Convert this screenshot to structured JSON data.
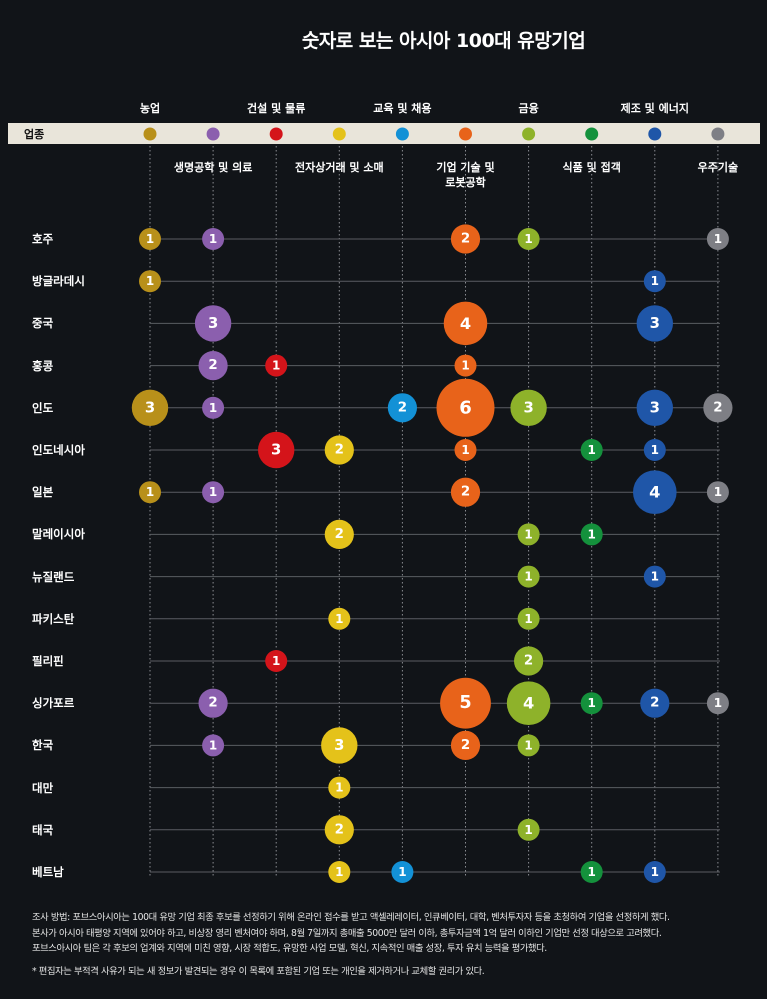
{
  "title": "숫자로 보는 아시아 100대 유망기업",
  "header_label": "업종",
  "chart_data": {
    "type": "bubble-matrix",
    "title": "숫자로 보는 아시아 100대 유망기업",
    "categories": [
      {
        "name": "농업",
        "color": "#b8901a",
        "label_row": "top"
      },
      {
        "name": "생명공학 및 의료",
        "color": "#8b5fae",
        "label_row": "bottom"
      },
      {
        "name": "건설 및 물류",
        "color": "#d4141a",
        "label_row": "top"
      },
      {
        "name": "전자상거래 및 소매",
        "color": "#e4c21a",
        "label_row": "bottom"
      },
      {
        "name": "교육 및 채용",
        "color": "#1391d6",
        "label_row": "top"
      },
      {
        "name": "기업 기술 및\n로봇공학",
        "color": "#e8631a",
        "label_row": "bottom"
      },
      {
        "name": "금융",
        "color": "#8eb22a",
        "label_row": "top"
      },
      {
        "name": "식품 및 접객",
        "color": "#14913c",
        "label_row": "bottom"
      },
      {
        "name": "제조 및 에너지",
        "color": "#1f56a8",
        "label_row": "top"
      },
      {
        "name": "우주기술",
        "color": "#7e7f85",
        "label_row": "bottom"
      }
    ],
    "rows": [
      {
        "country": "호주",
        "values": [
          1,
          1,
          0,
          0,
          0,
          2,
          1,
          0,
          0,
          1
        ]
      },
      {
        "country": "방글라데시",
        "values": [
          1,
          0,
          0,
          0,
          0,
          0,
          0,
          0,
          1,
          0
        ]
      },
      {
        "country": "중국",
        "values": [
          0,
          3,
          0,
          0,
          0,
          4,
          0,
          0,
          3,
          0
        ]
      },
      {
        "country": "홍콩",
        "values": [
          0,
          2,
          1,
          0,
          0,
          1,
          0,
          0,
          0,
          0
        ]
      },
      {
        "country": "인도",
        "values": [
          3,
          1,
          0,
          0,
          2,
          6,
          3,
          0,
          3,
          2
        ]
      },
      {
        "country": "인도네시아",
        "values": [
          0,
          0,
          3,
          2,
          0,
          1,
          0,
          1,
          1,
          0
        ]
      },
      {
        "country": "일본",
        "values": [
          1,
          1,
          0,
          0,
          0,
          2,
          0,
          0,
          4,
          1
        ]
      },
      {
        "country": "말레이시아",
        "values": [
          0,
          0,
          0,
          2,
          0,
          0,
          1,
          1,
          0,
          0
        ]
      },
      {
        "country": "뉴질랜드",
        "values": [
          0,
          0,
          0,
          0,
          0,
          0,
          1,
          0,
          1,
          0
        ]
      },
      {
        "country": "파키스탄",
        "values": [
          0,
          0,
          0,
          1,
          0,
          0,
          1,
          0,
          0,
          0
        ]
      },
      {
        "country": "필리핀",
        "values": [
          0,
          0,
          1,
          0,
          0,
          0,
          2,
          0,
          0,
          0
        ]
      },
      {
        "country": "싱가포르",
        "values": [
          0,
          2,
          0,
          0,
          0,
          5,
          4,
          1,
          2,
          1
        ]
      },
      {
        "country": "한국",
        "values": [
          0,
          1,
          0,
          3,
          0,
          2,
          1,
          0,
          0,
          0
        ]
      },
      {
        "country": "대만",
        "values": [
          0,
          0,
          0,
          1,
          0,
          0,
          0,
          0,
          0,
          0
        ]
      },
      {
        "country": "태국",
        "values": [
          0,
          0,
          0,
          2,
          0,
          0,
          1,
          0,
          0,
          0
        ]
      },
      {
        "country": "베트남",
        "values": [
          0,
          0,
          0,
          1,
          1,
          0,
          0,
          1,
          1,
          0
        ]
      }
    ]
  },
  "footnote": {
    "lines": [
      "조사 방법: 포브스아시아는 100대 유망 기업 최종 후보를 선정하기 위해 온라인 접수를 받고 액셀레레이터, 인큐베이터, 대학, 벤처투자자 등을 초청하여 기업을 선정하게 했다.",
      "본사가 아시아 태평양 지역에 있어야 하고, 비상장 영리 벤처여야 하며, 8월 7일까지 총매출 5000만 달러 이하, 총투자금액 1억 달러 이하인 기업만 선정 대상으로 고려했다.",
      "포브스아시아 팀은 각 후보의 업계와 지역에 미친 영향, 시장 적합도, 유망한 사업 모델, 혁신, 지속적인 매출 성장, 투자 유치 능력을 평가했다."
    ],
    "disclaimer": "* 편집자는 부적격 사유가 되는 새 정보가 발견되는 경우 이 목록에 포함된 기업 또는 개인을 제거하거나 교체할 권리가 있다."
  }
}
